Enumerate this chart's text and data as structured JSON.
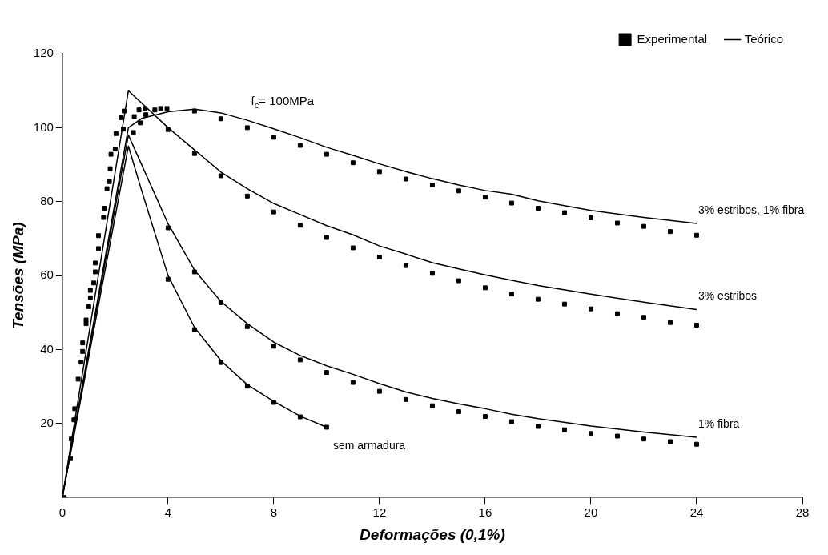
{
  "chart_data": {
    "type": "scatter",
    "xlabel": "Deformações (0,1%)",
    "ylabel": "Tensões (MPa)",
    "xlim": [
      0,
      28
    ],
    "xticks": [
      0,
      4,
      8,
      12,
      16,
      20,
      24,
      28
    ],
    "ylim": [
      0,
      120
    ],
    "yticks": [
      20,
      40,
      60,
      80,
      100,
      120
    ],
    "grid": false,
    "legend": "top right",
    "annotations": [
      "f$_{c}$= 100MPa",
      "3% estribos, 1% fibra",
      "3% estribos",
      "1% fibra",
      "sem armadura"
    ],
    "series": [
      {
        "name": "Experimental",
        "type": "scatter",
        "marker": "square",
        "color": "#000000",
        "x": [
          0.06,
          0.31,
          0.34,
          0.44,
          0.47,
          0.6,
          0.71,
          0.77,
          0.77,
          0.9,
          0.9,
          1,
          1.06,
          1.06,
          1.19,
          1.25,
          1.25,
          1.37,
          1.37,
          1.56,
          1.6,
          1.69,
          1.78,
          1.81,
          1.84,
          2,
          2.03,
          2.22,
          2.34,
          2.31,
          2.69,
          2.72,
          2.9,
          2.95,
          3.13,
          3.16,
          3.5,
          3.72,
          3.96
        ],
        "values": [
          0,
          10.5,
          15.8,
          21,
          24,
          32,
          36.6,
          39.5,
          41.8,
          47,
          48,
          51.6,
          54,
          56,
          58,
          61,
          63.4,
          67.3,
          70.8,
          75.7,
          78.2,
          83.5,
          85.4,
          88.9,
          92.8,
          94.2,
          98.4,
          102.7,
          104.5,
          99.6,
          98.7,
          103,
          104.8,
          101.3,
          105.2,
          103.5,
          104.8,
          105.2,
          105.2
        ]
      },
      {
        "type": "scatter",
        "marker": "square",
        "color": "#000000",
        "x": [
          5,
          6,
          7,
          8,
          9,
          10,
          11,
          12,
          13,
          14,
          15,
          16,
          17,
          18,
          19,
          20,
          21,
          22,
          23,
          24
        ],
        "values": [
          104.5,
          102.4,
          100,
          97.4,
          95.2,
          92.8,
          90.5,
          88.1,
          86.1,
          84.5,
          82.9,
          81.2,
          79.6,
          78.2,
          77,
          75.6,
          74.2,
          73.3,
          71.9,
          70.9
        ]
      },
      {
        "type": "scatter",
        "marker": "square",
        "color": "#000000",
        "x": [
          4,
          5,
          6,
          7,
          8,
          9,
          10,
          11,
          12,
          13,
          14,
          15,
          16,
          17,
          18,
          19,
          20,
          21,
          22,
          23,
          24
        ],
        "values": [
          99.5,
          93,
          87,
          81.5,
          77.2,
          73.6,
          70.3,
          67.5,
          65,
          62.7,
          60.6,
          58.6,
          56.7,
          55,
          53.6,
          52.3,
          51,
          49.7,
          48.7,
          47.3,
          46.6
        ]
      },
      {
        "type": "scatter",
        "marker": "square",
        "color": "#000000",
        "x": [
          4,
          5,
          6,
          7,
          8,
          9,
          10,
          11,
          12,
          13,
          14,
          15,
          16,
          17,
          18,
          19,
          20,
          21,
          22,
          23,
          24
        ],
        "values": [
          72.9,
          61,
          52.7,
          46.2,
          40.9,
          37.2,
          33.8,
          31.1,
          28.7,
          26.5,
          24.8,
          23.2,
          21.9,
          20.5,
          19.2,
          18.3,
          17.3,
          16.6,
          15.8,
          15.1,
          14.4
        ]
      },
      {
        "type": "scatter",
        "marker": "square",
        "color": "#000000",
        "x": [
          4,
          5,
          6,
          7,
          8,
          9,
          10
        ],
        "values": [
          59,
          45.4,
          36.5,
          30.1,
          25.7,
          21.8,
          19
        ]
      },
      {
        "name": "Teórico",
        "type": "line",
        "marker": "none",
        "color": "#000000",
        "x": [
          0,
          2.5,
          3,
          4,
          5,
          6,
          7,
          8,
          9,
          10,
          11,
          12,
          13,
          14,
          15,
          16,
          17,
          18,
          20,
          22,
          24
        ],
        "values": [
          0,
          100,
          102.5,
          104.3,
          105,
          104,
          102,
          99.7,
          97.3,
          94.7,
          92.5,
          90.2,
          88.1,
          86.2,
          84.5,
          83,
          82,
          80.2,
          77.6,
          75.7,
          74.1
        ]
      },
      {
        "type": "line",
        "marker": "none",
        "color": "#000000",
        "x": [
          0,
          2.5,
          4,
          5,
          6,
          7,
          8,
          9,
          10,
          11,
          12,
          13,
          14,
          15,
          16,
          17,
          18,
          20,
          22,
          24
        ],
        "values": [
          0,
          110,
          100,
          94,
          88,
          83.5,
          79.5,
          76.5,
          73.5,
          71,
          68,
          65.8,
          63.5,
          61.8,
          60.2,
          58.7,
          57.3,
          55,
          52.8,
          50.8
        ]
      },
      {
        "type": "line",
        "marker": "none",
        "color": "#000000",
        "x": [
          0,
          2.5,
          4,
          5,
          6,
          7,
          8,
          9,
          10,
          11,
          12,
          13,
          14,
          15,
          16,
          17,
          18,
          20,
          22,
          24
        ],
        "values": [
          0,
          98,
          74,
          61.5,
          53,
          47,
          42,
          38.4,
          35.6,
          33.3,
          30.8,
          28.5,
          26.8,
          25.3,
          24,
          22.5,
          21.3,
          19.3,
          17.7,
          16.3
        ]
      },
      {
        "type": "line",
        "marker": "none",
        "color": "#000000",
        "x": [
          0,
          2.5,
          3,
          4,
          5,
          6,
          7,
          8,
          9,
          10
        ],
        "values": [
          0,
          95,
          83,
          60,
          46,
          37,
          30.5,
          26,
          22,
          19
        ]
      }
    ]
  }
}
